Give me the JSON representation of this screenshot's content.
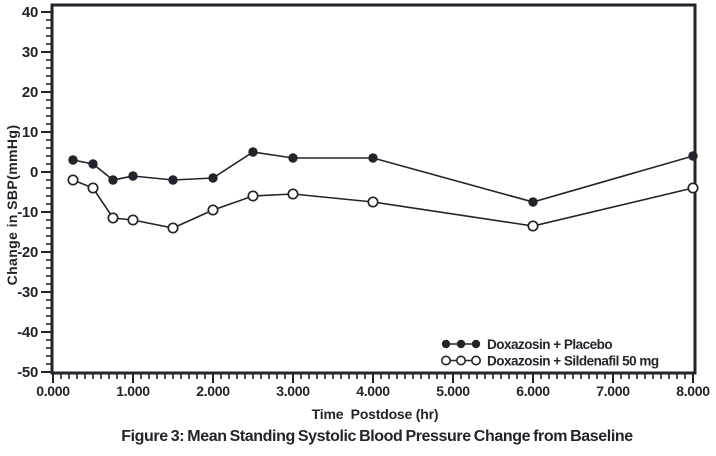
{
  "figure": {
    "title": "Figure 3: Mean Standing Systolic Blood Pressure Change from Baseline",
    "background_color": "#ffffff",
    "ink_color": "#26222b"
  },
  "chart_data": {
    "type": "line",
    "title": "Figure 3: Mean Standing Systolic Blood Pressure Change from Baseline",
    "xlabel": "Time  Postdose (hr)",
    "ylabel": "Change in SBP(mmHg)",
    "x": [
      0.25,
      0.5,
      0.75,
      1,
      1.5,
      2,
      2.5,
      3,
      4,
      6,
      8
    ],
    "series": [
      {
        "name": "Doxazosin + Placebo",
        "marker": "filled-circle",
        "values": [
          3,
          2,
          -2,
          -1,
          -2,
          -1.5,
          5,
          3.5,
          3.5,
          -7.5,
          4
        ]
      },
      {
        "name": "Doxazosin + Sildenafil 50 mg",
        "marker": "open-circle",
        "values": [
          -2,
          -4,
          -11.5,
          -12,
          -14,
          -9.5,
          -6,
          -5.5,
          -7.5,
          -13.5,
          -4
        ]
      }
    ],
    "xlim": [
      0,
      8.05
    ],
    "ylim": [
      -50.3,
      42
    ],
    "x_ticks_major": [
      0,
      1,
      2,
      3,
      4,
      5,
      6,
      7,
      8
    ],
    "x_tick_labels": [
      "0.000",
      "1.000",
      "2.000",
      "3.000",
      "4.000",
      "5.000",
      "6.000",
      "7.000",
      "8.000"
    ],
    "x_minor_step": 0.1,
    "y_ticks_major": [
      40,
      30,
      20,
      10,
      0,
      -10,
      -20,
      -30,
      -40,
      -50
    ],
    "y_tick_labels": [
      "40",
      "30",
      "20",
      "10",
      "0",
      "-10",
      "-20",
      "-30",
      "-40",
      "-50"
    ],
    "y_minor_step": 2,
    "grid": false,
    "legend_position": "inside-bottom-right",
    "legend": [
      "Doxazosin + Placebo",
      "Doxazosin + Sildenafil 50 mg"
    ]
  }
}
